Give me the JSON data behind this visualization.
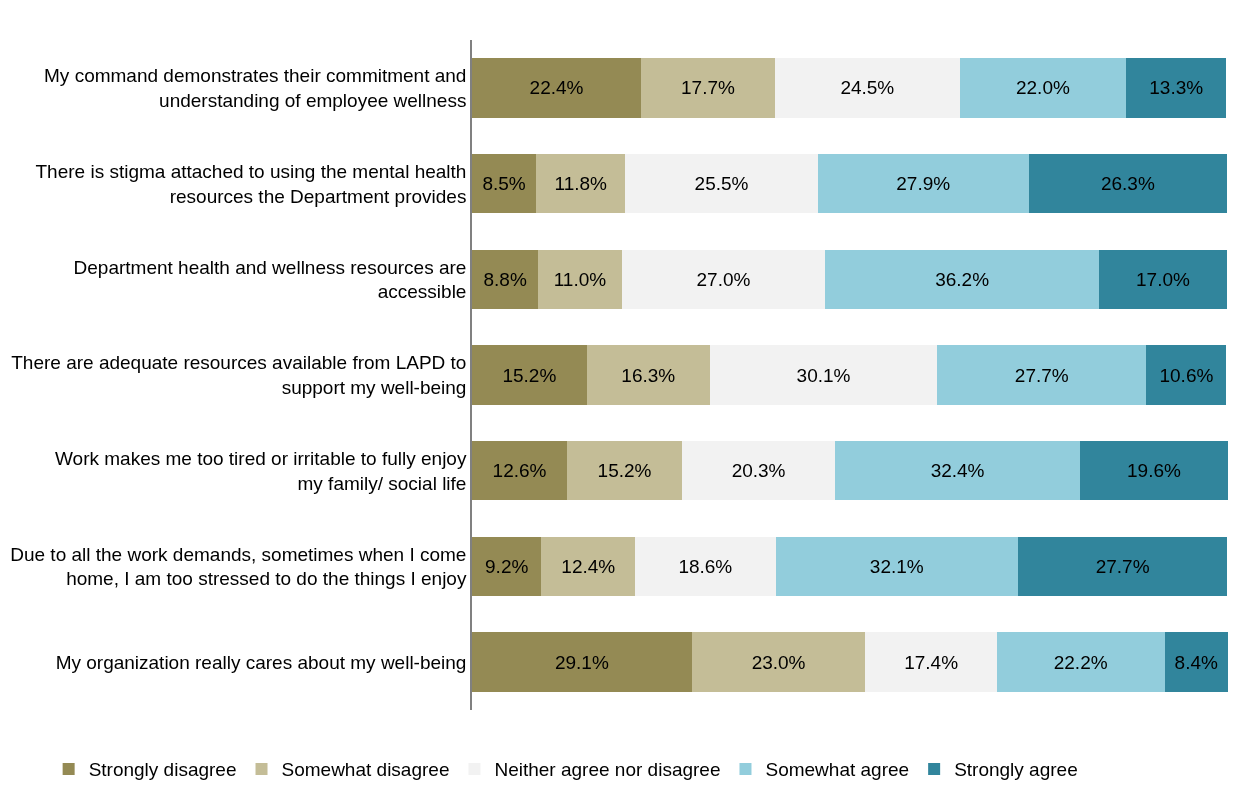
{
  "chart_data": {
    "type": "bar",
    "orientation": "horizontal",
    "stacked": true,
    "legend": "bottom",
    "tick_labels": "y",
    "categories": [
      "My command demonstrates their commitment and understanding of employee wellness",
      "There is stigma attached to using the mental health resources the Department provides",
      "Department health and wellness resources are accessible",
      "There are adequate resources available from LAPD to support my well-being",
      "Work makes me too tired or irritable to fully enjoy my family/ social life",
      "Due to all the work demands, sometimes when I come home, I am too stressed to do the things I enjoy",
      "My organization really cares about my well-being"
    ],
    "series": [
      {
        "name": "Strongly disagree",
        "color": "#948a54",
        "values": [
          22.4,
          8.5,
          8.8,
          15.2,
          12.6,
          9.2,
          29.1
        ],
        "value_labels": [
          "22.4%",
          "8.5%",
          "8.8%",
          "15.2%",
          "12.6%",
          "9.2%",
          "29.1%"
        ]
      },
      {
        "name": "Somewhat disagree",
        "color": "#c4bd97",
        "values": [
          17.7,
          11.8,
          11.0,
          16.3,
          15.2,
          12.4,
          23.0
        ],
        "value_labels": [
          "17.7%",
          "11.8%",
          "11.0%",
          "16.3%",
          "15.2%",
          "12.4%",
          "23.0%"
        ]
      },
      {
        "name": "Neither agree nor disagree",
        "color": "#f2f2f2",
        "values": [
          24.5,
          25.5,
          27.0,
          30.1,
          20.3,
          18.6,
          17.4
        ],
        "value_labels": [
          "24.5%",
          "25.5%",
          "27.0%",
          "30.1%",
          "20.3%",
          "18.6%",
          "17.4%"
        ]
      },
      {
        "name": "Somewhat agree",
        "color": "#92cddc",
        "values": [
          22.0,
          27.9,
          36.2,
          27.7,
          32.4,
          32.1,
          22.2
        ],
        "value_labels": [
          "22.0%",
          "27.9%",
          "36.2%",
          "27.7%",
          "32.4%",
          "32.1%",
          "22.2%"
        ]
      },
      {
        "name": "Strongly agree",
        "color": "#31859c",
        "values": [
          13.3,
          26.3,
          17.0,
          10.6,
          19.6,
          27.7,
          8.4
        ],
        "value_labels": [
          "13.3%",
          "26.3%",
          "17.0%",
          "10.6%",
          "19.6%",
          "27.7%",
          "8.4%"
        ]
      }
    ]
  }
}
